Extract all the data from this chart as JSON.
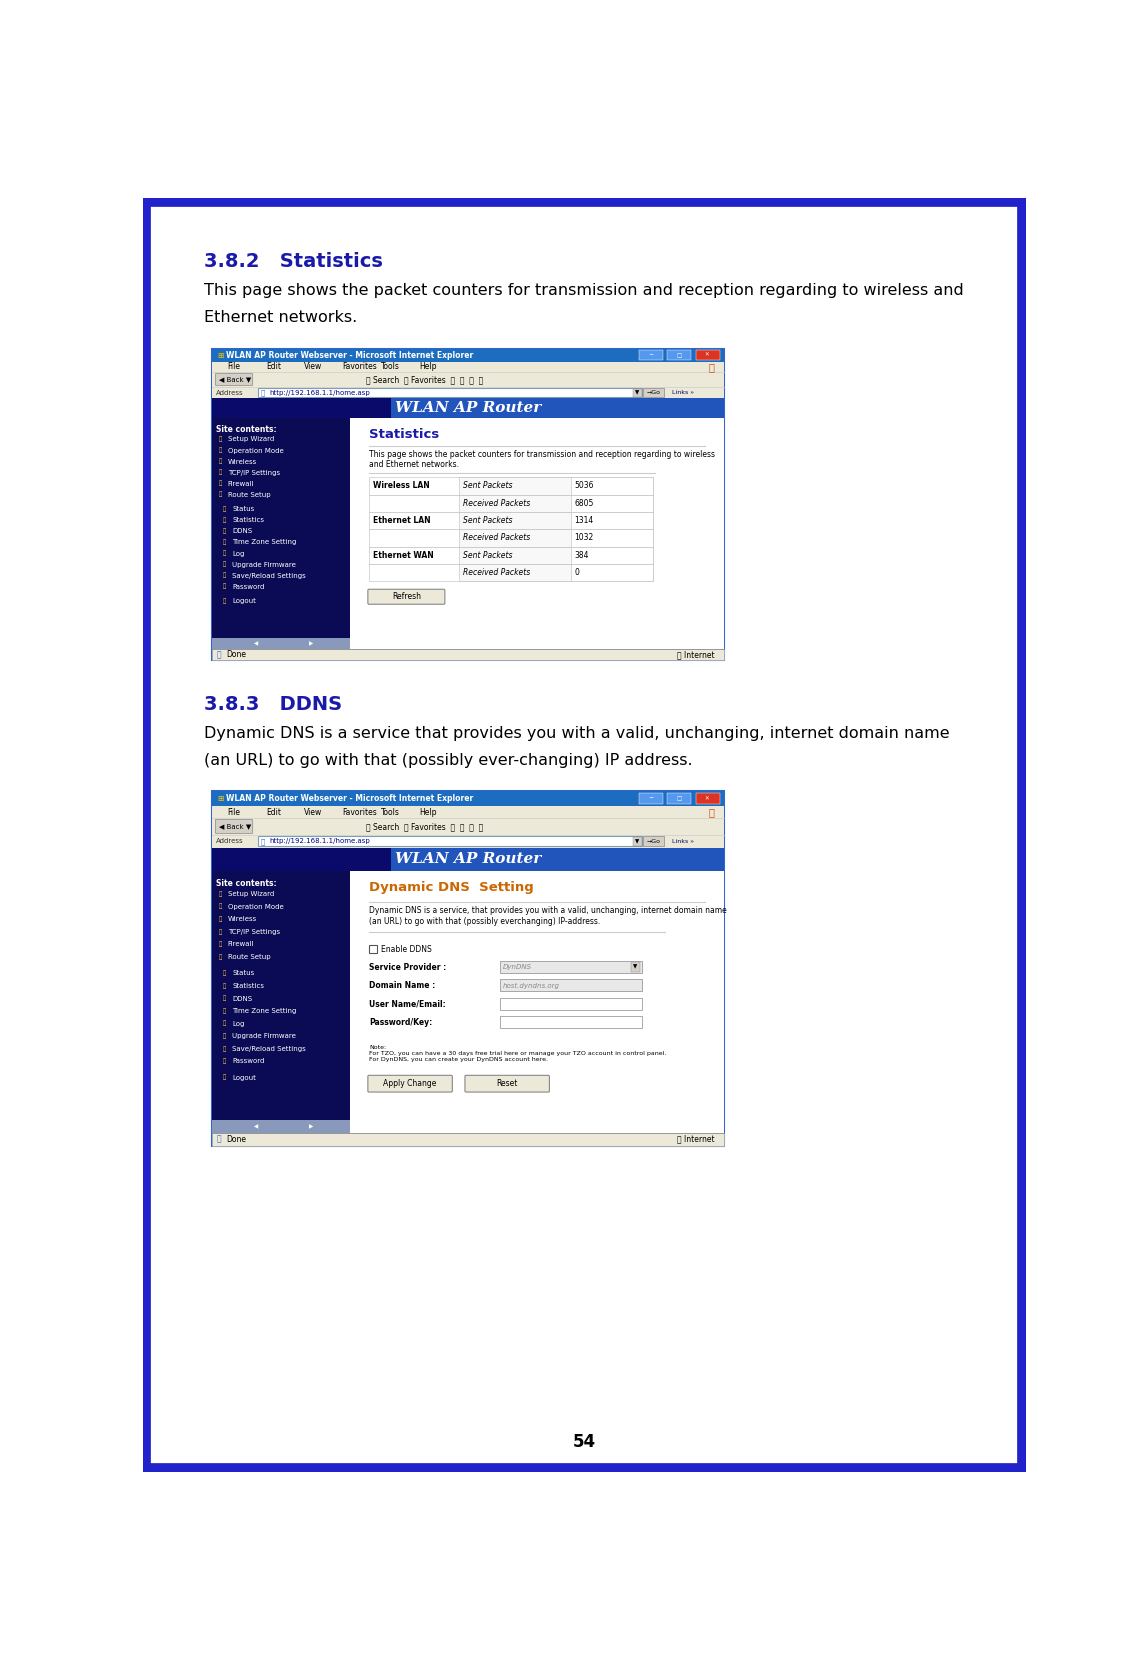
{
  "page_bg": "#ffffff",
  "border_color": "#2222cc",
  "border_width": 7,
  "page_number": "54",
  "section1_heading": "3.8.2   Statistics",
  "section1_heading_color": "#1a1aaa",
  "section1_body_line1": "This page shows the packet counters for transmission and reception regarding to wireless and",
  "section1_body_line2": "Ethernet networks.",
  "section2_heading": "3.8.3   DDNS",
  "section2_heading_color": "#1a1aaa",
  "section2_body_line1": "Dynamic DNS is a service that provides you with a valid, unchanging, internet domain name",
  "section2_body_line2": "(an URL) to go with that (possibly ever-changing) IP address.",
  "screenshot1": {
    "title_bar": "WLAN AP Router Webserver - Microsoft Internet Explorer",
    "title_bar_bg": "#1c6dc0",
    "menu_bar_bg": "#ece9d8",
    "address_bar_bg": "#ece9d8",
    "address_url": "http://192.168.1.1/home.asp",
    "header_bg_left": "#0a0a6a",
    "header_bg_right": "#2255bb",
    "header_text": "WLAN AP Router",
    "sidebar_bg": "#0a0a55",
    "sidebar_items": [
      "Site contents:",
      "Setup Wizard",
      "Operation Mode",
      "Wireless",
      "TCP/IP Settings",
      "Firewall",
      "Route Setup",
      " ",
      "Status",
      "Statistics",
      "DDNS",
      "Time Zone Setting",
      "Log",
      "Upgrade Firmware",
      "Save/Reload Settings",
      "Password",
      " ",
      "Logout"
    ],
    "content_bg": "#ffffff",
    "content_title": "Statistics",
    "content_title_color": "#1a1aaa",
    "content_desc": "This page shows the packet counters for transmission and reception regarding to wireless\nand Ethernet networks.",
    "table_rows": [
      [
        "Wireless LAN",
        "Sent Packets",
        "5036"
      ],
      [
        "",
        "Received Packets",
        "6805"
      ],
      [
        "Ethernet LAN",
        "Sent Packets",
        "1314"
      ],
      [
        "",
        "Received Packets",
        "1032"
      ],
      [
        "Ethernet WAN",
        "Sent Packets",
        "384"
      ],
      [
        "",
        "Received Packets",
        "0"
      ]
    ],
    "refresh_btn": "Refresh",
    "status_bar_text": "Done",
    "scrollbar_color": "#b0c4de"
  },
  "screenshot2": {
    "title_bar": "WLAN AP Router Webserver - Microsoft Internet Explorer",
    "title_bar_bg": "#1c6dc0",
    "menu_bar_bg": "#ece9d8",
    "address_bar_bg": "#ece9d8",
    "address_url": "http://192.168.1.1/home.asp",
    "header_bg_left": "#0a0a6a",
    "header_bg_right": "#2255bb",
    "header_text": "WLAN AP Router",
    "sidebar_bg": "#0a0a55",
    "sidebar_items": [
      "Site contents:",
      "Setup Wizard",
      "Operation Mode",
      "Wireless",
      "TCP/IP Settings",
      "Firewall",
      "Route Setup",
      " ",
      "Status",
      "Statistics",
      "DDNS",
      "Time Zone Setting",
      "Log",
      "Upgrade Firmware",
      "Save/Reload Settings",
      "Password",
      " ",
      "Logout"
    ],
    "content_bg": "#ffffff",
    "content_title": "Dynamic DNS  Setting",
    "content_title_color": "#cc6600",
    "content_desc": "Dynamic DNS is a service, that provides you with a valid, unchanging, internet domain name\n(an URL) to go with that (possibly everchanging) IP-address.",
    "form_fields": [
      [
        "Service Provider :",
        "DynDNS",
        true
      ],
      [
        "Domain Name :",
        "host.dyndns.org",
        true
      ],
      [
        "User Name/Email:",
        "",
        false
      ],
      [
        "Password/Key:",
        "",
        false
      ]
    ],
    "note_text": "Note:\nFor TZO, you can have a 30 days free trial here or manage your TZO account in control panel.\nFor DynDNS, you can create your DynDNS account here.",
    "buttons": [
      "Apply Change",
      "Reset"
    ],
    "status_bar_text": "Done",
    "scrollbar_color": "#b0c4de"
  }
}
